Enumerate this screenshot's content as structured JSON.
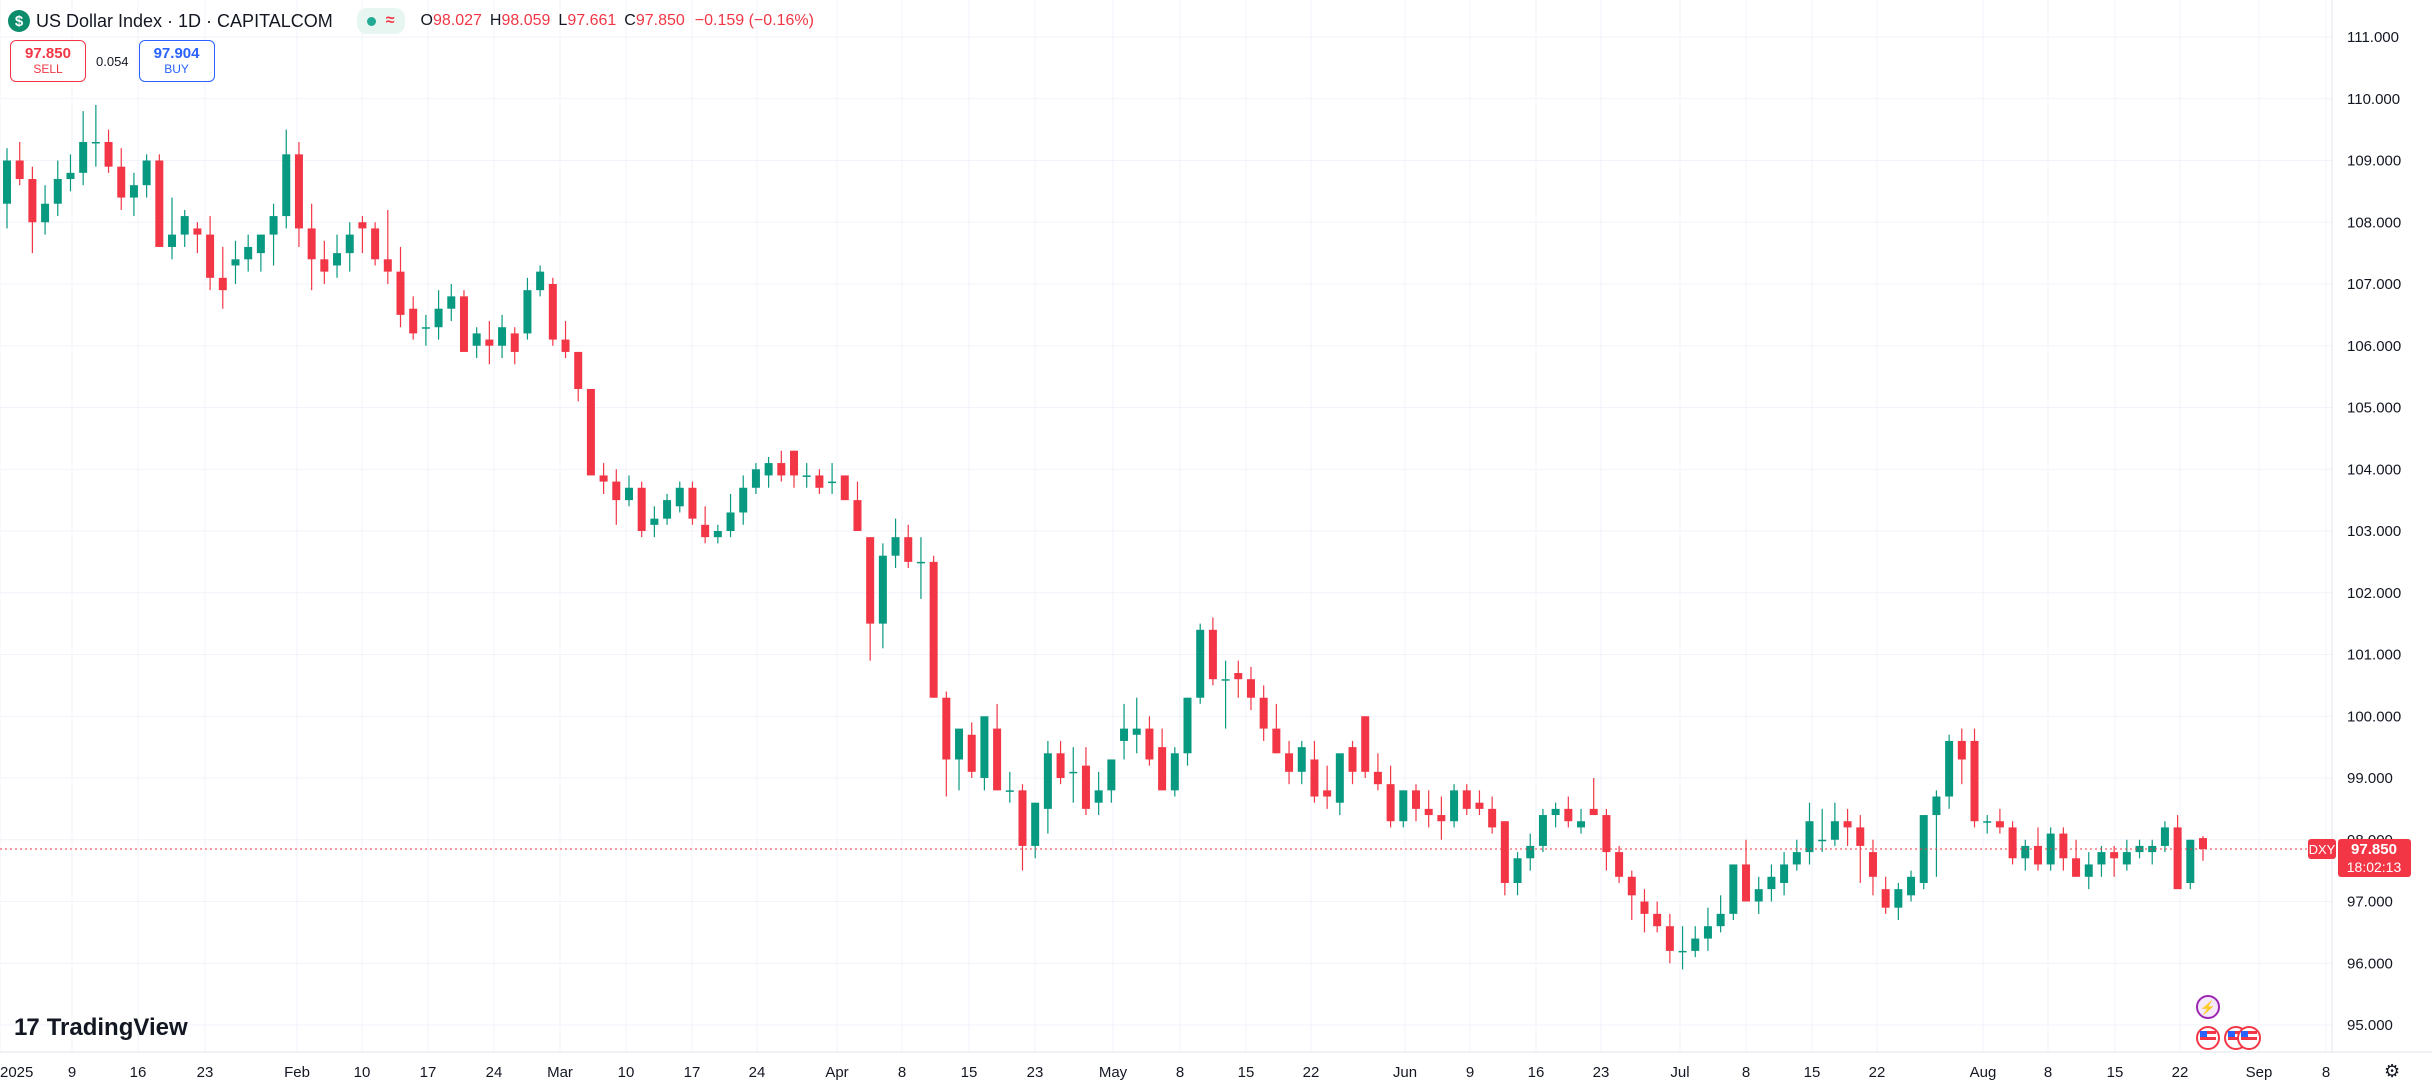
{
  "header": {
    "symbol_badge": "$",
    "title": "US Dollar Index · 1D · CAPITALCOM",
    "ohlc": [
      {
        "key": "O",
        "value": "98.027"
      },
      {
        "key": "H",
        "value": "98.059"
      },
      {
        "key": "L",
        "value": "97.661"
      },
      {
        "key": "C",
        "value": "97.850"
      }
    ],
    "change": "−0.159 (−0.16%)"
  },
  "trade": {
    "sell_price": "97.850",
    "sell_label": "SELL",
    "spread": "0.054",
    "buy_price": "97.904",
    "buy_label": "BUY"
  },
  "price_marker": {
    "symbol": "DXY",
    "price": "97.850",
    "countdown": "18:02:13"
  },
  "branding": {
    "name": "TradingView"
  },
  "colors": {
    "up": "#089981",
    "down": "#f23645",
    "grid": "#f0f3fa",
    "axis_text": "#131722"
  },
  "chart_data": {
    "type": "candlestick",
    "title": "US Dollar Index · 1D · CAPITALCOM",
    "x_tick_labels": [
      "2025",
      "9",
      "16",
      "23",
      "Feb",
      "10",
      "17",
      "24",
      "Mar",
      "10",
      "17",
      "24",
      "Apr",
      "8",
      "15",
      "23",
      "May",
      "8",
      "15",
      "22",
      "Jun",
      "9",
      "16",
      "23",
      "Jul",
      "8",
      "15",
      "22",
      "Aug",
      "8",
      "15",
      "22",
      "Sep",
      "8"
    ],
    "y_tick_labels": [
      "111.000",
      "110.000",
      "109.000",
      "108.000",
      "107.000",
      "106.000",
      "105.000",
      "104.000",
      "103.000",
      "102.000",
      "101.000",
      "100.000",
      "99.000",
      "98.000",
      "97.000",
      "96.000",
      "95.000"
    ],
    "ylim": [
      94.6,
      111.4
    ],
    "last_price": 97.85,
    "series": [
      {
        "values": [
          [
            108.3,
            109.2,
            107.9,
            109.0
          ],
          [
            109.0,
            109.3,
            108.6,
            108.7
          ],
          [
            108.7,
            108.9,
            107.5,
            108.0
          ],
          [
            108.0,
            108.6,
            107.8,
            108.3
          ],
          [
            108.3,
            109.0,
            108.1,
            108.7
          ],
          [
            108.7,
            109.1,
            108.5,
            108.8
          ],
          [
            108.8,
            109.8,
            108.6,
            109.3
          ],
          [
            109.3,
            109.9,
            108.9,
            109.3
          ],
          [
            109.3,
            109.5,
            108.8,
            108.9
          ],
          [
            108.9,
            109.2,
            108.2,
            108.4
          ],
          [
            108.4,
            108.8,
            108.1,
            108.6
          ],
          [
            108.6,
            109.1,
            108.4,
            109.0
          ],
          [
            109.0,
            109.1,
            107.6,
            107.6
          ],
          [
            107.6,
            108.4,
            107.4,
            107.8
          ],
          [
            107.8,
            108.2,
            107.6,
            108.1
          ],
          [
            107.9,
            108.0,
            107.5,
            107.8
          ],
          [
            107.8,
            108.1,
            106.9,
            107.1
          ],
          [
            107.1,
            107.6,
            106.6,
            106.9
          ],
          [
            107.3,
            107.7,
            107.0,
            107.4
          ],
          [
            107.4,
            107.8,
            107.2,
            107.6
          ],
          [
            107.5,
            107.8,
            107.2,
            107.8
          ],
          [
            107.8,
            108.3,
            107.3,
            108.1
          ],
          [
            108.1,
            109.5,
            107.9,
            109.1
          ],
          [
            109.1,
            109.3,
            107.6,
            107.9
          ],
          [
            107.9,
            108.3,
            106.9,
            107.4
          ],
          [
            107.4,
            107.7,
            107.0,
            107.2
          ],
          [
            107.3,
            107.8,
            107.1,
            107.5
          ],
          [
            107.5,
            108.0,
            107.2,
            107.8
          ],
          [
            108.0,
            108.1,
            107.5,
            107.9
          ],
          [
            107.9,
            108.0,
            107.3,
            107.4
          ],
          [
            107.4,
            108.2,
            107.0,
            107.2
          ],
          [
            107.2,
            107.6,
            106.3,
            106.5
          ],
          [
            106.6,
            106.8,
            106.1,
            106.2
          ],
          [
            106.3,
            106.5,
            106.0,
            106.3
          ],
          [
            106.3,
            106.9,
            106.1,
            106.6
          ],
          [
            106.6,
            107.0,
            106.4,
            106.8
          ],
          [
            106.8,
            106.9,
            105.9,
            105.9
          ],
          [
            106.0,
            106.3,
            105.8,
            106.2
          ],
          [
            106.1,
            106.4,
            105.7,
            106.0
          ],
          [
            106.0,
            106.5,
            105.8,
            106.3
          ],
          [
            106.2,
            106.3,
            105.7,
            105.9
          ],
          [
            106.2,
            107.1,
            106.1,
            106.9
          ],
          [
            106.9,
            107.3,
            106.8,
            107.2
          ],
          [
            107.0,
            107.1,
            106.0,
            106.1
          ],
          [
            106.1,
            106.4,
            105.8,
            105.9
          ],
          [
            105.9,
            105.9,
            105.1,
            105.3
          ],
          [
            105.3,
            105.3,
            103.9,
            103.9
          ],
          [
            103.9,
            104.1,
            103.6,
            103.8
          ],
          [
            103.8,
            104.0,
            103.1,
            103.5
          ],
          [
            103.5,
            103.9,
            103.4,
            103.7
          ],
          [
            103.7,
            103.8,
            102.9,
            103.0
          ],
          [
            103.1,
            103.4,
            102.9,
            103.2
          ],
          [
            103.2,
            103.6,
            103.1,
            103.5
          ],
          [
            103.4,
            103.8,
            103.3,
            103.7
          ],
          [
            103.7,
            103.8,
            103.1,
            103.2
          ],
          [
            103.1,
            103.4,
            102.8,
            102.9
          ],
          [
            102.9,
            103.1,
            102.8,
            103.0
          ],
          [
            103.0,
            103.6,
            102.9,
            103.3
          ],
          [
            103.3,
            103.9,
            103.1,
            103.7
          ],
          [
            103.7,
            104.1,
            103.6,
            104.0
          ],
          [
            103.9,
            104.2,
            103.7,
            104.1
          ],
          [
            104.1,
            104.3,
            103.8,
            103.9
          ],
          [
            104.3,
            104.3,
            103.7,
            103.9
          ],
          [
            103.9,
            104.1,
            103.7,
            103.9
          ],
          [
            103.9,
            104.0,
            103.6,
            103.7
          ],
          [
            103.8,
            104.1,
            103.6,
            103.8
          ],
          [
            103.9,
            103.9,
            103.5,
            103.5
          ],
          [
            103.5,
            103.8,
            103.0,
            103.0
          ],
          [
            102.9,
            102.9,
            100.9,
            101.5
          ],
          [
            101.5,
            102.8,
            101.1,
            102.6
          ],
          [
            102.6,
            103.2,
            102.4,
            102.9
          ],
          [
            102.9,
            103.1,
            102.4,
            102.5
          ],
          [
            102.5,
            102.9,
            101.9,
            102.5
          ],
          [
            102.5,
            102.6,
            100.3,
            100.3
          ],
          [
            100.3,
            100.4,
            98.7,
            99.3
          ],
          [
            99.3,
            99.5,
            98.8,
            99.8
          ],
          [
            99.7,
            99.9,
            99.0,
            99.1
          ],
          [
            99.0,
            99.6,
            98.8,
            100.0
          ],
          [
            99.8,
            100.2,
            98.8,
            98.8
          ],
          [
            98.8,
            99.1,
            98.6,
            98.8
          ],
          [
            98.8,
            98.9,
            97.5,
            97.9
          ],
          [
            97.9,
            98.6,
            97.7,
            98.6
          ],
          [
            98.5,
            99.6,
            98.1,
            99.4
          ],
          [
            99.4,
            99.6,
            98.9,
            99.0
          ],
          [
            99.1,
            99.5,
            98.6,
            99.1
          ],
          [
            99.2,
            99.5,
            98.4,
            98.5
          ],
          [
            98.6,
            99.1,
            98.4,
            98.8
          ],
          [
            98.8,
            99.3,
            98.6,
            99.3
          ],
          [
            99.6,
            100.2,
            99.3,
            99.8
          ],
          [
            99.7,
            100.3,
            99.4,
            99.8
          ],
          [
            99.8,
            100.0,
            99.2,
            99.3
          ],
          [
            99.5,
            99.8,
            98.8,
            98.8
          ],
          [
            98.8,
            99.5,
            98.7,
            99.4
          ],
          [
            99.4,
            100.3,
            99.2,
            100.3
          ],
          [
            100.3,
            101.5,
            100.2,
            101.4
          ],
          [
            101.4,
            101.6,
            100.5,
            100.6
          ],
          [
            100.6,
            100.9,
            99.8,
            100.6
          ],
          [
            100.7,
            100.9,
            100.3,
            100.6
          ],
          [
            100.6,
            100.8,
            100.1,
            100.3
          ],
          [
            100.3,
            100.5,
            99.6,
            99.8
          ],
          [
            99.8,
            100.2,
            99.4,
            99.4
          ],
          [
            99.4,
            99.6,
            98.9,
            99.1
          ],
          [
            99.1,
            99.6,
            98.9,
            99.5
          ],
          [
            99.3,
            99.6,
            98.6,
            98.7
          ],
          [
            98.8,
            99.2,
            98.5,
            98.7
          ],
          [
            98.6,
            99.3,
            98.4,
            99.4
          ],
          [
            99.5,
            99.6,
            98.9,
            99.1
          ],
          [
            100.0,
            100.0,
            99.0,
            99.1
          ],
          [
            99.1,
            99.4,
            98.8,
            98.9
          ],
          [
            98.9,
            99.2,
            98.2,
            98.3
          ],
          [
            98.3,
            98.8,
            98.2,
            98.8
          ],
          [
            98.8,
            98.9,
            98.3,
            98.5
          ],
          [
            98.5,
            98.8,
            98.2,
            98.4
          ],
          [
            98.4,
            98.7,
            98.0,
            98.3
          ],
          [
            98.3,
            98.9,
            98.2,
            98.8
          ],
          [
            98.8,
            98.9,
            98.4,
            98.5
          ],
          [
            98.6,
            98.8,
            98.4,
            98.5
          ],
          [
            98.5,
            98.7,
            98.1,
            98.2
          ],
          [
            98.3,
            98.3,
            97.1,
            97.3
          ],
          [
            97.3,
            97.8,
            97.1,
            97.7
          ],
          [
            97.7,
            98.1,
            97.5,
            97.9
          ],
          [
            97.9,
            98.5,
            97.8,
            98.4
          ],
          [
            98.4,
            98.6,
            98.2,
            98.5
          ],
          [
            98.5,
            98.7,
            98.2,
            98.3
          ],
          [
            98.2,
            98.5,
            98.1,
            98.3
          ],
          [
            98.5,
            99.0,
            98.4,
            98.4
          ],
          [
            98.4,
            98.5,
            97.5,
            97.8
          ],
          [
            97.8,
            97.9,
            97.3,
            97.4
          ],
          [
            97.4,
            97.5,
            96.7,
            97.1
          ],
          [
            97.0,
            97.2,
            96.5,
            96.8
          ],
          [
            96.8,
            97.0,
            96.5,
            96.6
          ],
          [
            96.6,
            96.8,
            96.0,
            96.2
          ],
          [
            96.2,
            96.6,
            95.9,
            96.2
          ],
          [
            96.2,
            96.6,
            96.1,
            96.4
          ],
          [
            96.4,
            96.9,
            96.2,
            96.6
          ],
          [
            96.6,
            97.1,
            96.5,
            96.8
          ],
          [
            96.8,
            97.6,
            96.7,
            97.6
          ],
          [
            97.6,
            98.0,
            97.4,
            97.0
          ],
          [
            97.0,
            97.4,
            96.8,
            97.2
          ],
          [
            97.2,
            97.6,
            97.0,
            97.4
          ],
          [
            97.3,
            97.8,
            97.1,
            97.6
          ],
          [
            97.6,
            98.0,
            97.5,
            97.8
          ],
          [
            97.8,
            98.6,
            97.6,
            98.3
          ],
          [
            98.0,
            98.5,
            97.8,
            98.0
          ],
          [
            98.0,
            98.6,
            97.9,
            98.3
          ],
          [
            98.3,
            98.5,
            97.9,
            98.2
          ],
          [
            98.2,
            98.4,
            97.3,
            97.9
          ],
          [
            97.8,
            98.0,
            97.1,
            97.4
          ],
          [
            97.2,
            97.4,
            96.8,
            96.9
          ],
          [
            96.9,
            97.3,
            96.7,
            97.2
          ],
          [
            97.1,
            97.5,
            97.0,
            97.4
          ],
          [
            97.3,
            97.9,
            97.2,
            98.4
          ],
          [
            98.4,
            98.8,
            97.4,
            98.7
          ],
          [
            98.7,
            99.7,
            98.5,
            99.6
          ],
          [
            99.6,
            99.8,
            98.9,
            99.3
          ],
          [
            99.6,
            99.8,
            98.2,
            98.3
          ],
          [
            98.3,
            98.4,
            98.1,
            98.3
          ],
          [
            98.3,
            98.5,
            98.1,
            98.2
          ],
          [
            98.2,
            98.3,
            97.6,
            97.7
          ],
          [
            97.7,
            98.0,
            97.5,
            97.9
          ],
          [
            97.9,
            98.2,
            97.5,
            97.6
          ],
          [
            97.6,
            98.2,
            97.5,
            98.1
          ],
          [
            98.1,
            98.2,
            97.5,
            97.7
          ],
          [
            97.7,
            98.0,
            97.4,
            97.4
          ],
          [
            97.4,
            97.8,
            97.2,
            97.6
          ],
          [
            97.6,
            97.9,
            97.4,
            97.8
          ],
          [
            97.8,
            97.9,
            97.4,
            97.7
          ],
          [
            97.6,
            98.0,
            97.5,
            97.8
          ],
          [
            97.8,
            98.0,
            97.7,
            97.9
          ],
          [
            97.8,
            98.0,
            97.6,
            97.9
          ],
          [
            97.9,
            98.3,
            97.8,
            98.2
          ],
          [
            98.2,
            98.4,
            97.3,
            97.2
          ],
          [
            97.3,
            98.0,
            97.2,
            98.0
          ],
          [
            98.027,
            98.059,
            97.661,
            97.85
          ]
        ]
      }
    ]
  }
}
